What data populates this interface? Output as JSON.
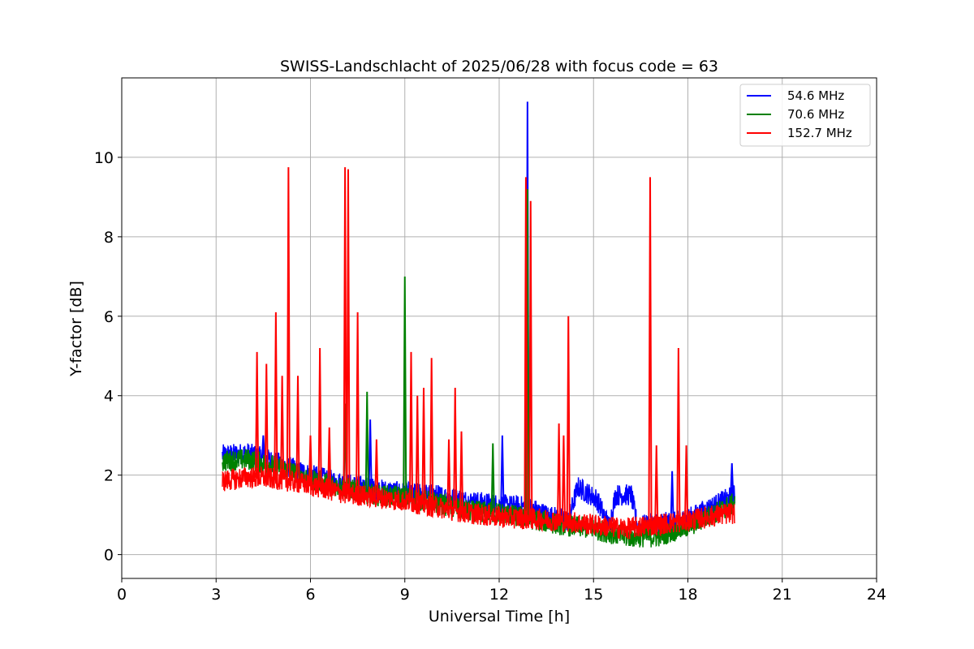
{
  "chart_data": {
    "type": "line",
    "title": "SWISS-Landschlacht of 2025/06/28 with focus code = 63",
    "xlabel": "Universal Time [h]",
    "ylabel": "Y-factor [dB]",
    "xlim": [
      0,
      24
    ],
    "ylim": [
      -0.6,
      12.0
    ],
    "xticks": [
      0,
      3,
      6,
      9,
      12,
      15,
      18,
      21,
      24
    ],
    "yticks": [
      0,
      2,
      4,
      6,
      8,
      10
    ],
    "grid": true,
    "legend_position": "top-right",
    "series": [
      {
        "name": " 54.6 MHz",
        "color": "#0000ff",
        "baseline": [
          [
            3.2,
            2.5
          ],
          [
            4.0,
            2.55
          ],
          [
            5.0,
            2.3
          ],
          [
            6.0,
            2.0
          ],
          [
            7.0,
            1.8
          ],
          [
            8.0,
            1.65
          ],
          [
            9.0,
            1.55
          ],
          [
            10.0,
            1.5
          ],
          [
            11.0,
            1.35
          ],
          [
            12.0,
            1.25
          ],
          [
            12.9,
            1.2
          ],
          [
            13.5,
            1.0
          ],
          [
            14.2,
            0.85
          ],
          [
            14.5,
            1.7
          ],
          [
            15.1,
            1.4
          ],
          [
            15.5,
            0.7
          ],
          [
            15.7,
            1.5
          ],
          [
            16.2,
            1.5
          ],
          [
            16.4,
            0.7
          ],
          [
            17.0,
            0.8
          ],
          [
            17.5,
            0.8
          ],
          [
            18.0,
            0.9
          ],
          [
            19.0,
            1.3
          ],
          [
            19.5,
            1.5
          ]
        ],
        "spikes": [
          [
            4.5,
            3.0
          ],
          [
            7.1,
            3.8
          ],
          [
            7.9,
            3.4
          ],
          [
            12.1,
            3.0
          ],
          [
            12.9,
            11.4
          ],
          [
            17.5,
            2.1
          ],
          [
            19.4,
            2.3
          ]
        ]
      },
      {
        "name": " 70.6 MHz",
        "color": "#008000",
        "baseline": [
          [
            3.2,
            2.35
          ],
          [
            4.0,
            2.4
          ],
          [
            5.0,
            2.2
          ],
          [
            6.0,
            1.9
          ],
          [
            7.0,
            1.7
          ],
          [
            8.0,
            1.5
          ],
          [
            9.0,
            1.45
          ],
          [
            10.0,
            1.3
          ],
          [
            11.0,
            1.1
          ],
          [
            12.0,
            1.05
          ],
          [
            13.0,
            0.9
          ],
          [
            14.0,
            0.75
          ],
          [
            15.0,
            0.65
          ],
          [
            16.0,
            0.45
          ],
          [
            17.0,
            0.45
          ],
          [
            18.0,
            0.7
          ],
          [
            19.0,
            1.1
          ],
          [
            19.5,
            1.3
          ]
        ],
        "spikes": [
          [
            7.1,
            3.8
          ],
          [
            7.8,
            4.1
          ],
          [
            9.0,
            7.0
          ],
          [
            11.8,
            2.8
          ],
          [
            12.9,
            9.2
          ]
        ]
      },
      {
        "name": "152.7 MHz",
        "color": "#ff0000",
        "baseline": [
          [
            3.2,
            1.85
          ],
          [
            4.0,
            1.95
          ],
          [
            5.0,
            1.9
          ],
          [
            6.0,
            1.75
          ],
          [
            7.0,
            1.55
          ],
          [
            8.0,
            1.45
          ],
          [
            9.0,
            1.35
          ],
          [
            10.0,
            1.2
          ],
          [
            11.0,
            1.05
          ],
          [
            12.0,
            0.95
          ],
          [
            13.0,
            0.9
          ],
          [
            14.0,
            0.85
          ],
          [
            15.0,
            0.75
          ],
          [
            16.0,
            0.65
          ],
          [
            17.0,
            0.75
          ],
          [
            18.0,
            0.85
          ],
          [
            19.0,
            1.0
          ],
          [
            19.5,
            1.05
          ]
        ],
        "spikes": [
          [
            4.3,
            5.1
          ],
          [
            4.6,
            4.8
          ],
          [
            4.9,
            6.1
          ],
          [
            5.1,
            4.5
          ],
          [
            5.3,
            9.75
          ],
          [
            5.6,
            4.5
          ],
          [
            6.0,
            3.0
          ],
          [
            6.3,
            5.2
          ],
          [
            6.6,
            3.2
          ],
          [
            7.1,
            9.75
          ],
          [
            7.2,
            9.7
          ],
          [
            7.5,
            6.1
          ],
          [
            8.1,
            2.9
          ],
          [
            9.2,
            5.1
          ],
          [
            9.4,
            4.0
          ],
          [
            9.6,
            4.2
          ],
          [
            9.85,
            4.95
          ],
          [
            10.4,
            2.9
          ],
          [
            10.6,
            4.2
          ],
          [
            10.8,
            3.1
          ],
          [
            12.85,
            9.5
          ],
          [
            13.0,
            8.9
          ],
          [
            13.9,
            3.3
          ],
          [
            14.05,
            3.0
          ],
          [
            14.2,
            6.0
          ],
          [
            16.8,
            9.5
          ],
          [
            17.0,
            2.75
          ],
          [
            17.7,
            5.2
          ],
          [
            17.95,
            2.75
          ]
        ]
      }
    ]
  }
}
